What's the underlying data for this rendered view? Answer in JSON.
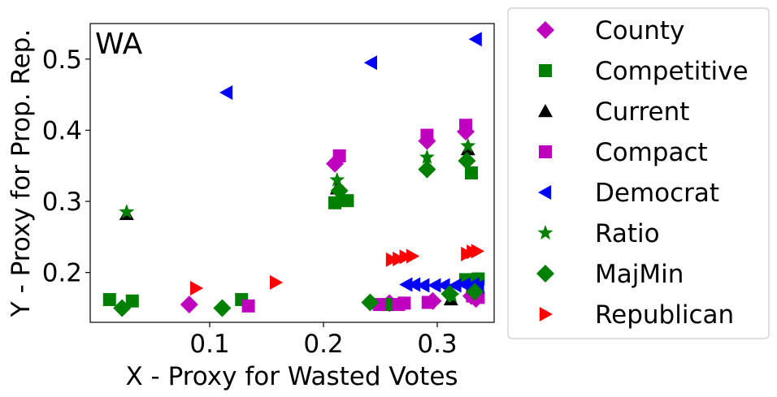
{
  "chart_data": {
    "type": "scatter",
    "title": "",
    "annotation": "WA",
    "xlabel": "X - Proxy for Wasted Votes",
    "ylabel": "Y - Proxy for Prop. Rep.",
    "xlim": [
      -0.005,
      0.35
    ],
    "ylim": [
      0.13,
      0.55
    ],
    "xticks": [
      0.1,
      0.2,
      0.3
    ],
    "xtick_labels": [
      "0.1",
      "0.2",
      "0.3"
    ],
    "yticks": [
      0.2,
      0.3,
      0.4,
      0.5
    ],
    "ytick_labels": [
      "0.2",
      "0.3",
      "0.4",
      "0.5"
    ],
    "grid": false,
    "legend_placement": "outside-right",
    "series": [
      {
        "name": "County",
        "marker": "diamond",
        "color": "#bf00bf",
        "points": [
          [
            0.082,
            0.155
          ],
          [
            0.21,
            0.353
          ],
          [
            0.258,
            0.157
          ],
          [
            0.291,
            0.385
          ],
          [
            0.296,
            0.16
          ],
          [
            0.325,
            0.398
          ],
          [
            0.33,
            0.167
          ],
          [
            0.334,
            0.163
          ]
        ]
      },
      {
        "name": "Competitive",
        "marker": "square",
        "color": "#008000",
        "points": [
          [
            0.012,
            0.162
          ],
          [
            0.032,
            0.16
          ],
          [
            0.128,
            0.162
          ],
          [
            0.21,
            0.298
          ],
          [
            0.221,
            0.301
          ],
          [
            0.256,
            0.155
          ],
          [
            0.325,
            0.19
          ],
          [
            0.33,
            0.34
          ],
          [
            0.336,
            0.191
          ]
        ]
      },
      {
        "name": "Current",
        "marker": "triangle-up",
        "color": "#000000",
        "points": [
          [
            0.027,
            0.282
          ],
          [
            0.212,
            0.318
          ],
          [
            0.291,
            0.35
          ],
          [
            0.312,
            0.162
          ],
          [
            0.327,
            0.373
          ]
        ]
      },
      {
        "name": "Compact",
        "marker": "square",
        "color": "#bf00bf",
        "points": [
          [
            0.134,
            0.153
          ],
          [
            0.214,
            0.364
          ],
          [
            0.249,
            0.155
          ],
          [
            0.266,
            0.155
          ],
          [
            0.271,
            0.157
          ],
          [
            0.291,
            0.393
          ],
          [
            0.292,
            0.158
          ],
          [
            0.325,
            0.407
          ],
          [
            0.331,
            0.167
          ],
          [
            0.336,
            0.165
          ]
        ]
      },
      {
        "name": "Democrat",
        "marker": "triangle-left",
        "color": "#0000ff",
        "points": [
          [
            0.115,
            0.453
          ],
          [
            0.242,
            0.495
          ],
          [
            0.334,
            0.528
          ],
          [
            0.273,
            0.183
          ],
          [
            0.28,
            0.183
          ],
          [
            0.288,
            0.182
          ],
          [
            0.298,
            0.182
          ],
          [
            0.306,
            0.182
          ],
          [
            0.316,
            0.182
          ],
          [
            0.324,
            0.183
          ],
          [
            0.332,
            0.183
          ],
          [
            0.336,
            0.18
          ]
        ]
      },
      {
        "name": "Ratio",
        "marker": "star",
        "color": "#008000",
        "points": [
          [
            0.027,
            0.285
          ],
          [
            0.212,
            0.33
          ],
          [
            0.291,
            0.362
          ],
          [
            0.313,
            0.167
          ],
          [
            0.327,
            0.378
          ]
        ]
      },
      {
        "name": "MajMin",
        "marker": "diamond",
        "color": "#008000",
        "points": [
          [
            0.023,
            0.15
          ],
          [
            0.111,
            0.15
          ],
          [
            0.214,
            0.315
          ],
          [
            0.241,
            0.158
          ],
          [
            0.291,
            0.345
          ],
          [
            0.311,
            0.17
          ],
          [
            0.326,
            0.357
          ],
          [
            0.333,
            0.173
          ]
        ]
      },
      {
        "name": "Republican",
        "marker": "triangle-right",
        "color": "#ff0000",
        "points": [
          [
            0.088,
            0.178
          ],
          [
            0.158,
            0.186
          ],
          [
            0.26,
            0.218
          ],
          [
            0.266,
            0.219
          ],
          [
            0.272,
            0.222
          ],
          [
            0.278,
            0.223
          ],
          [
            0.326,
            0.226
          ],
          [
            0.331,
            0.229
          ],
          [
            0.335,
            0.23
          ]
        ]
      }
    ]
  }
}
